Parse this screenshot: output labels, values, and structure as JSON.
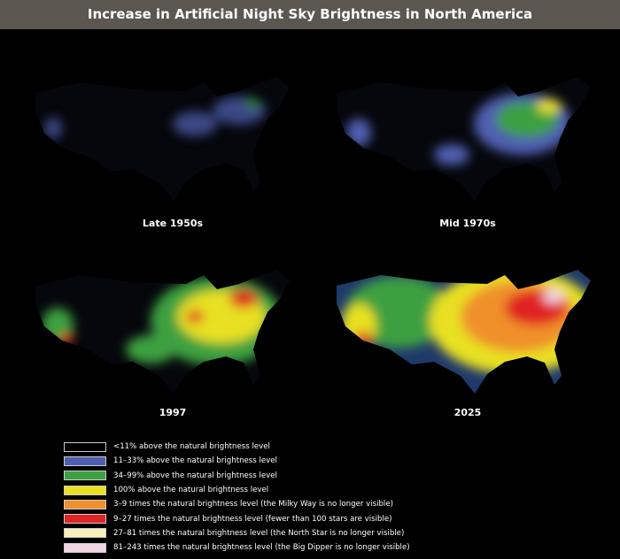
{
  "title": "Increase in Artificial Night Sky Brightness in North America",
  "panels": [
    {
      "label": "Late 1950s"
    },
    {
      "label": "Mid 1970s"
    },
    {
      "label": "1997"
    },
    {
      "label": "2025"
    }
  ],
  "legend": [
    {
      "label": "<11% above the natural brightness level",
      "color": "#000000"
    },
    {
      "label": "11–33% above the natural brightness level",
      "color": "#4f5fb0"
    },
    {
      "label": "34–99% above the natural brightness level",
      "color": "#3ca040"
    },
    {
      "label": "100% above the natural brightness level",
      "color": "#e8e020"
    },
    {
      "label": "3–9 times the natural brightness level (the Milky Way is no longer visible)",
      "color": "#f0902a"
    },
    {
      "label": "9–27 times the natural brightness level (fewer than 100 stars are visible)",
      "color": "#e02424"
    },
    {
      "label": "27–81 times the natural brightness level (the North Star is no longer visible)",
      "color": "#f8f0b8"
    },
    {
      "label": "81–243 times the natural brightness level (the Big Dipper is no longer visible)",
      "color": "#f0d4e4"
    }
  ]
}
